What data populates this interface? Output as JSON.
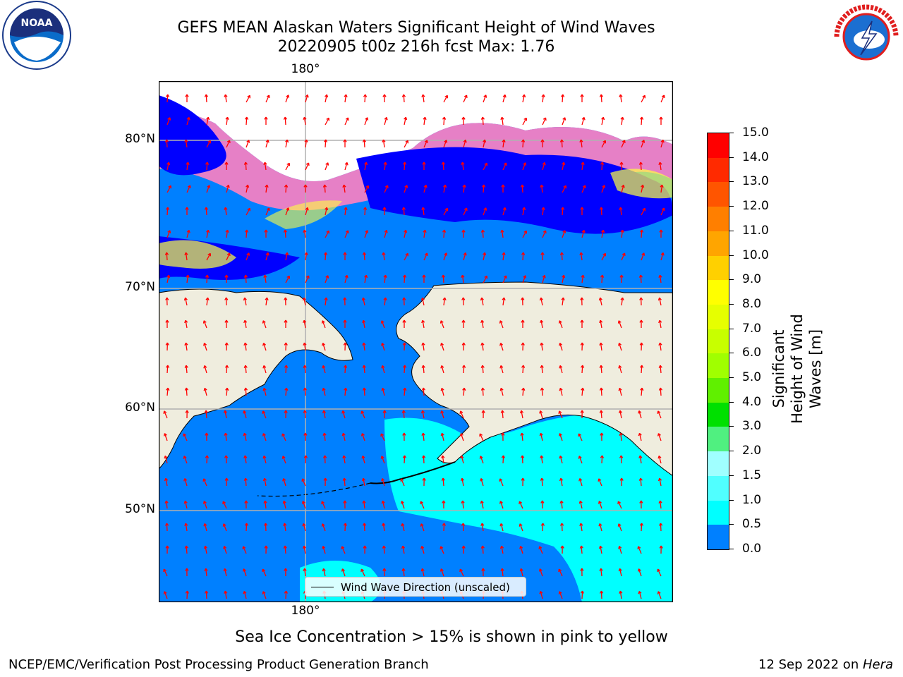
{
  "title": {
    "line1": "GEFS MEAN Alaskan Waters Significant Height of Wind Waves",
    "line2": "20220905 t00z 216h fcst   Max: 1.76"
  },
  "logos": {
    "left": {
      "name": "NOAA",
      "icon": "noaa-logo"
    },
    "right": {
      "name": "National Weather Service",
      "icon": "nws-logo"
    }
  },
  "map": {
    "lon_label_top": "180°",
    "lon_label_bottom": "180°",
    "lat_labels": [
      "80°N",
      "70°N",
      "60°N",
      "50°N"
    ],
    "legend_text": "Wind Wave Direction (unscaled)",
    "land_color": "#efedde",
    "ocean_low_color": "#0080ff",
    "ocean_mid_color": "#00ffff",
    "ice_edge_colors": [
      "#ff80c0",
      "#ff60ff",
      "#ffff40"
    ],
    "arrow_color": "#ff0000"
  },
  "colorbar": {
    "label": "Significant Height of Wind Waves [m]",
    "ticks": [
      "15.0",
      "14.0",
      "13.0",
      "12.0",
      "11.0",
      "10.0",
      "9.0",
      "8.0",
      "7.0",
      "6.0",
      "5.0",
      "4.0",
      "3.0",
      "2.0",
      "1.5",
      "1.0",
      "0.5",
      "0.0"
    ],
    "colors": [
      "#ff0000",
      "#ff2a00",
      "#ff5500",
      "#ff7f00",
      "#ffa500",
      "#ffd000",
      "#ffff00",
      "#e6ff00",
      "#c8ff00",
      "#a0ff00",
      "#60f000",
      "#00e000",
      "#50f080",
      "#a0ffff",
      "#50ffff",
      "#00ffff",
      "#0080ff",
      "#0000ff"
    ]
  },
  "ice_note": "Sea Ice Concentration > 15% is shown in pink to yellow",
  "footer": {
    "left": "NCEP/EMC/Verification Post Processing Product Generation Branch",
    "right_prefix": "12 Sep 2022 on ",
    "right_host": "Hera"
  }
}
